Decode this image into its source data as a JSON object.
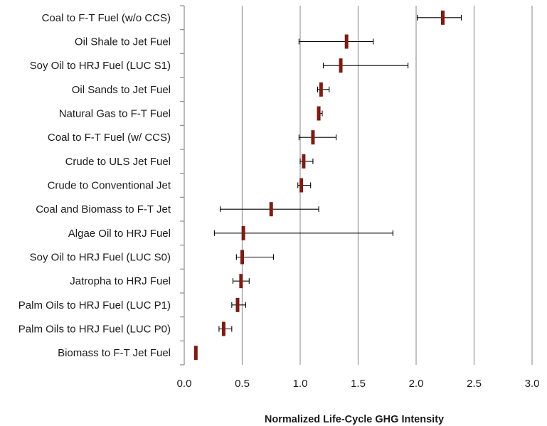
{
  "chart_data": {
    "type": "scatter",
    "title": "",
    "xlabel": "Normalized Life-Cycle GHG Intensity",
    "ylabel": "",
    "xlim": [
      0,
      3.0
    ],
    "x_ticks": [
      "0.0",
      "0.5",
      "1.0",
      "1.5",
      "2.0",
      "2.5",
      "3.0"
    ],
    "grid": "vertical",
    "marker_color": "#7b1c14",
    "errorbar_color": "#000000",
    "categories": [
      "Coal to F-T Fuel (w/o CCS)",
      "Oil Shale to Jet Fuel",
      "Soy Oil to HRJ Fuel (LUC S1)",
      "Oil Sands to Jet Fuel",
      "Natural Gas to F-T Fuel",
      "Coal to F-T Fuel (w/ CCS)",
      "Crude to ULS Jet Fuel",
      "Crude to Conventional Jet",
      "Coal and Biomass to F-T Jet",
      "Algae Oil to HRJ Fuel",
      "Soy Oil to HRJ Fuel (LUC S0)",
      "Jatropha to HRJ Fuel",
      "Palm Oils to HRJ Fuel (LUC P1)",
      "Palm Oils to HRJ Fuel (LUC P0)",
      "Biomass to F-T Jet Fuel"
    ],
    "values": [
      2.23,
      1.4,
      1.35,
      1.18,
      1.16,
      1.11,
      1.03,
      1.01,
      0.75,
      0.51,
      0.5,
      0.49,
      0.46,
      0.34,
      0.1
    ],
    "error_low": [
      2.01,
      0.99,
      1.2,
      1.15,
      1.15,
      0.99,
      1.0,
      0.98,
      0.31,
      0.26,
      0.45,
      0.42,
      0.41,
      0.3,
      0.09
    ],
    "error_high": [
      2.39,
      1.63,
      1.93,
      1.25,
      1.19,
      1.31,
      1.11,
      1.09,
      1.16,
      1.8,
      0.77,
      0.56,
      0.53,
      0.41,
      0.11
    ]
  }
}
